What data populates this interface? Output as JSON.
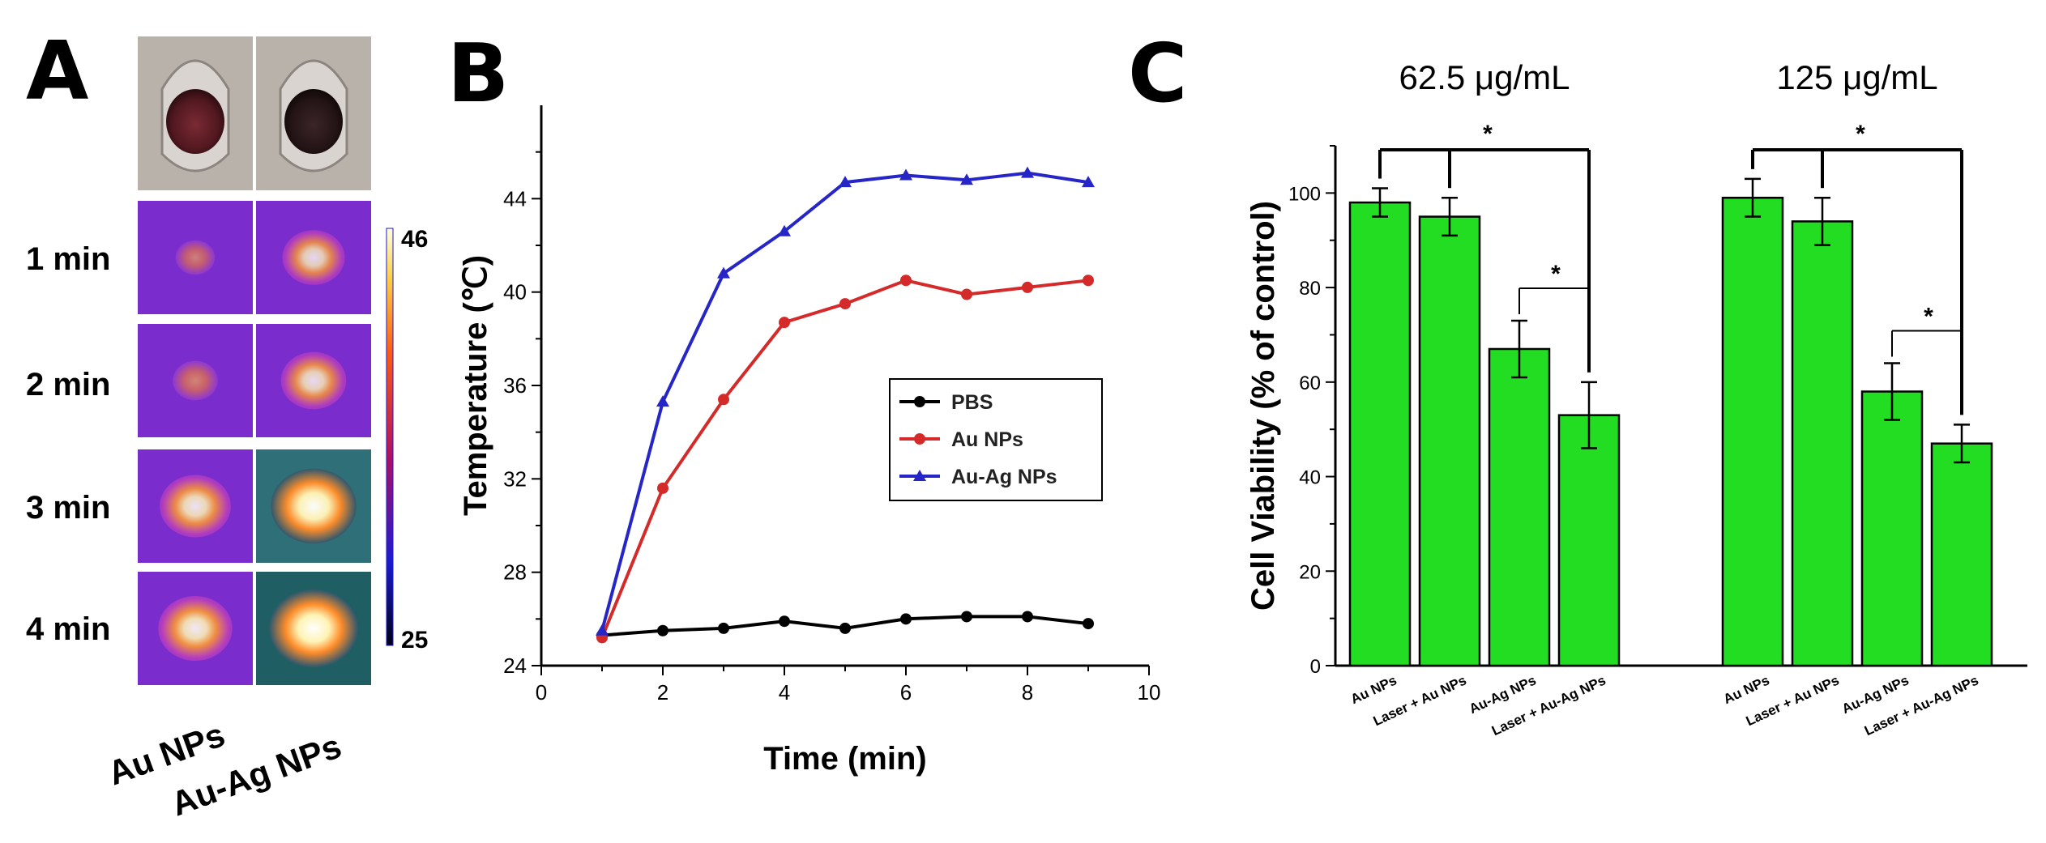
{
  "colors": {
    "black": "#000000",
    "red": "#d42a2a",
    "blue": "#2626c8",
    "green": "#22dd22",
    "dish_bg": "#b9b2ab",
    "therm_dark": "#7b2cc4",
    "therm_warm": "#ff9a30"
  },
  "panel_a": {
    "letter": "A",
    "time_labels": [
      "1 min",
      "2 min",
      "3 min",
      "4 min"
    ],
    "column_labels": [
      "Au NPs",
      "Au-Ag NPs"
    ],
    "colorbar": {
      "max_label": "46",
      "min_label": "25"
    },
    "dish_photo": "sample-dish-photographs",
    "heat_intensity": [
      [
        0.15,
        0.55
      ],
      [
        0.25,
        0.6
      ],
      [
        0.7,
        0.95
      ],
      [
        0.75,
        1.0
      ]
    ]
  },
  "chart_data": [
    {
      "panel": "B",
      "type": "line",
      "xlabel": "Time (min)",
      "ylabel": "Temperature (℃)",
      "xlim": [
        0,
        10
      ],
      "ylim": [
        24,
        48
      ],
      "x_ticks": [
        "0",
        "2",
        "4",
        "6",
        "8",
        "10"
      ],
      "y_ticks": [
        "24",
        "28",
        "32",
        "36",
        "40",
        "44"
      ],
      "x": [
        1,
        2,
        3,
        4,
        5,
        6,
        7,
        8,
        9
      ],
      "series": [
        {
          "name": "PBS",
          "marker": "circle",
          "color": "#000000",
          "values": [
            25.3,
            25.5,
            25.6,
            25.9,
            25.6,
            26.0,
            26.1,
            26.1,
            25.8
          ]
        },
        {
          "name": "Au NPs",
          "marker": "circle",
          "color": "#d42a2a",
          "values": [
            25.2,
            31.6,
            35.4,
            38.7,
            39.5,
            40.5,
            39.9,
            40.2,
            40.5
          ]
        },
        {
          "name": "Au-Ag NPs",
          "marker": "triangle",
          "color": "#2626c8",
          "values": [
            25.5,
            35.3,
            40.8,
            42.6,
            44.7,
            45.0,
            44.8,
            45.1,
            44.7
          ]
        }
      ],
      "legend": "center-right"
    },
    {
      "panel": "C",
      "type": "bar",
      "ylabel": "Cell Viability (% of control)",
      "ylim": [
        0,
        110
      ],
      "y_ticks": [
        "0",
        "20",
        "40",
        "60",
        "80",
        "100"
      ],
      "groups": [
        {
          "title": "62.5 μg/mL",
          "categories": [
            "Au NPs",
            "Laser + Au NPs",
            "Au-Ag NPs",
            "Laser + Au-Ag NPs"
          ],
          "values": [
            98,
            95,
            67,
            53
          ],
          "errors": [
            3,
            4,
            6,
            7
          ],
          "significance": [
            {
              "label": "*",
              "compare": "Au NPs / Laser + Au NPs vs Laser + Au-Ag NPs"
            },
            {
              "label": "*",
              "compare": "Au-Ag NPs vs Laser + Au-Ag NPs"
            }
          ]
        },
        {
          "title": "125 μg/mL",
          "categories": [
            "Au NPs",
            "Laser + Au NPs",
            "Au-Ag NPs",
            "Laser + Au-Ag NPs"
          ],
          "values": [
            99,
            94,
            58,
            47
          ],
          "errors": [
            4,
            5,
            6,
            4
          ],
          "significance": [
            {
              "label": "*",
              "compare": "Au NPs / Laser + Au NPs vs Laser + Au-Ag NPs"
            },
            {
              "label": "*",
              "compare": "Au-Ag NPs vs Laser + Au-Ag NPs"
            }
          ]
        }
      ],
      "color": "#22dd22"
    }
  ],
  "letters": {
    "b": "B",
    "c": "C"
  }
}
